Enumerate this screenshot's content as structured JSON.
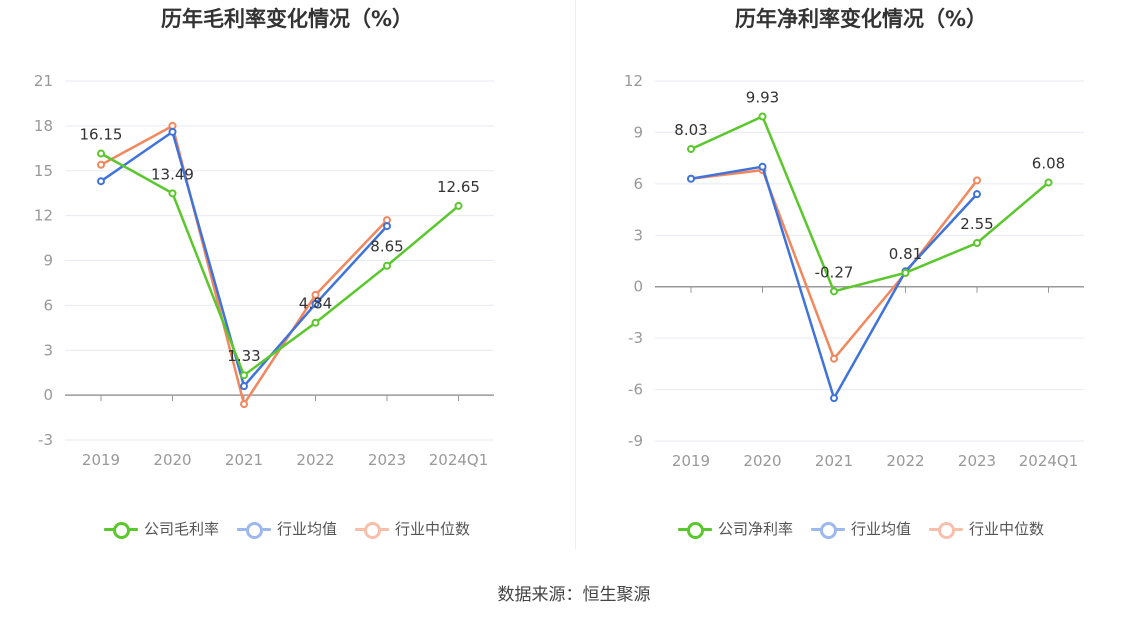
{
  "footer": {
    "source": "数据来源：恒生聚源"
  },
  "charts": [
    {
      "title": "历年毛利率变化情况（%）",
      "legend": [
        "公司毛利率",
        "行业均值",
        "行业中位数"
      ]
    },
    {
      "title": "历年净利率变化情况（%）",
      "legend": [
        "公司净利率",
        "行业均值",
        "行业中位数"
      ]
    }
  ],
  "colors": {
    "company": "#5ac72c",
    "avg": "#3f73db",
    "median": "#f2875e",
    "grid": "#e8eaf2",
    "axis": "#999999",
    "tick": "#999999"
  },
  "chart_data": [
    {
      "type": "line",
      "title": "历年毛利率变化情况（%）",
      "categories": [
        "2019",
        "2020",
        "2021",
        "2022",
        "2023",
        "2024Q1"
      ],
      "yticks": [
        "21",
        "18",
        "15",
        "12",
        "9",
        "6",
        "3",
        "0",
        "-3"
      ],
      "ylim": [
        -3,
        21
      ],
      "series": [
        {
          "name": "公司毛利率",
          "values": [
            16.15,
            13.49,
            1.33,
            4.84,
            8.65,
            12.65
          ],
          "labels": [
            "16.15",
            "13.49",
            "1.33",
            "4.84",
            "8.65",
            "12.65"
          ]
        },
        {
          "name": "行业均值",
          "values": [
            14.3,
            17.6,
            0.6,
            6.1,
            11.3,
            null
          ]
        },
        {
          "name": "行业中位数",
          "values": [
            15.4,
            18.0,
            -0.6,
            6.7,
            11.7,
            null
          ]
        }
      ]
    },
    {
      "type": "line",
      "title": "历年净利率变化情况（%）",
      "categories": [
        "2019",
        "2020",
        "2021",
        "2022",
        "2023",
        "2024Q1"
      ],
      "yticks": [
        "12",
        "9",
        "6",
        "3",
        "0",
        "-3",
        "-6",
        "-9"
      ],
      "ylim": [
        -9,
        12
      ],
      "series": [
        {
          "name": "公司净利率",
          "values": [
            8.03,
            9.93,
            -0.27,
            0.81,
            2.55,
            6.08
          ],
          "labels": [
            "8.03",
            "9.93",
            "-0.27",
            "0.81",
            "2.55",
            "6.08"
          ]
        },
        {
          "name": "行业均值",
          "values": [
            6.3,
            7.0,
            -6.5,
            0.9,
            5.4,
            null
          ]
        },
        {
          "name": "行业中位数",
          "values": [
            6.3,
            6.8,
            -4.2,
            0.8,
            6.2,
            null
          ]
        }
      ]
    }
  ]
}
